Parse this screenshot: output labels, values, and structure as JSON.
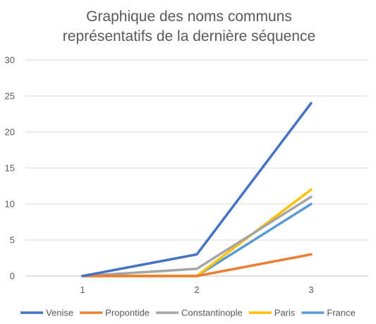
{
  "chart_data": {
    "type": "line",
    "title_line1": "Graphique des noms communs",
    "title_line2": "représentatifs de la dernière séquence",
    "xlabel": "",
    "ylabel": "",
    "x": [
      1,
      2,
      3
    ],
    "x_tick_labels": [
      "1",
      "2",
      "3"
    ],
    "ylim": [
      0,
      30
    ],
    "y_ticks": [
      0,
      5,
      10,
      15,
      20,
      25,
      30
    ],
    "grid": true,
    "legend_position": "bottom",
    "series": [
      {
        "name": "Venise",
        "values": [
          0,
          3,
          24
        ],
        "color": "#4472C4"
      },
      {
        "name": "Propontide",
        "values": [
          0,
          0,
          3
        ],
        "color": "#ED7D31"
      },
      {
        "name": "Constantinople",
        "values": [
          0,
          1,
          11
        ],
        "color": "#A5A5A5"
      },
      {
        "name": "Paris",
        "values": [
          0,
          0,
          12
        ],
        "color": "#FFC000"
      },
      {
        "name": "France",
        "values": [
          0,
          0,
          10
        ],
        "color": "#5B9BD5"
      }
    ]
  }
}
